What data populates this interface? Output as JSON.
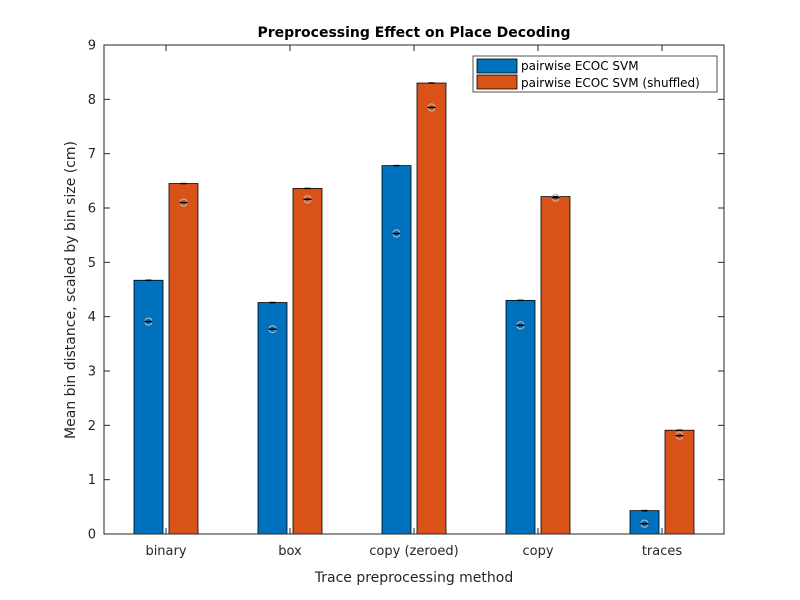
{
  "chart_data": {
    "type": "bar",
    "title": "Preprocessing Effect on Place Decoding",
    "xlabel": "Trace preprocessing method",
    "ylabel": "Mean bin distance, scaled by bin size (cm)",
    "categories": [
      "binary",
      "box",
      "copy (zeroed)",
      "copy",
      "traces"
    ],
    "ylim": [
      0,
      9
    ],
    "yticks": [
      "0",
      "1",
      "2",
      "3",
      "4",
      "5",
      "6",
      "7",
      "8",
      "9"
    ],
    "legend_position": "top-right",
    "grid": false,
    "series": [
      {
        "name": "pairwise ECOC SVM",
        "color": "#0072BD",
        "values": [
          4.67,
          4.26,
          6.78,
          4.3,
          0.43
        ],
        "markers": [
          3.91,
          3.77,
          5.53,
          3.84,
          0.19
        ]
      },
      {
        "name": "pairwise ECOC SVM (shuffled)",
        "color": "#D95319",
        "values": [
          6.45,
          6.36,
          8.3,
          6.21,
          1.91
        ],
        "markers": [
          6.1,
          6.16,
          7.85,
          6.19,
          1.81
        ]
      }
    ]
  }
}
